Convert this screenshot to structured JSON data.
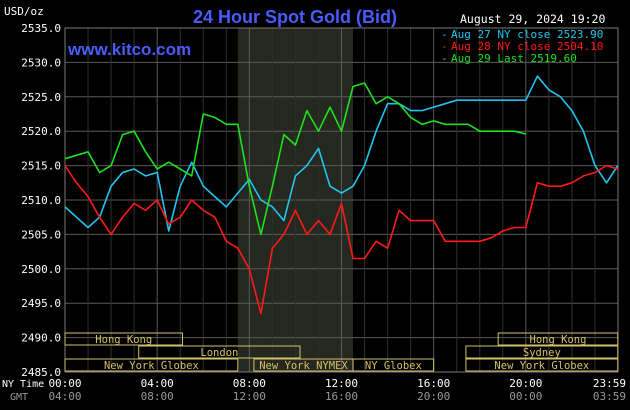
{
  "chart_data": {
    "type": "line",
    "title": "24 Hour Spot Gold (Bid)",
    "ylabel": "USD/oz",
    "date_label": "August 29, 2024 19:20",
    "watermark": "www.kitco.com",
    "ylim": [
      2485,
      2535
    ],
    "y_ticks": [
      "2535.0",
      "2530.0",
      "2525.0",
      "2520.0",
      "2515.0",
      "2510.0",
      "2505.0",
      "2500.0",
      "2495.0",
      "2490.0",
      "2485.0"
    ],
    "x_range_hours": [
      0,
      24
    ],
    "ny_time_label": "NY Time",
    "gmt_label": "GMT",
    "x_ticks_ny": [
      "00:00",
      "04:00",
      "08:00",
      "12:00",
      "16:00",
      "20:00",
      "23:59"
    ],
    "x_ticks_gmt": [
      "04:00",
      "08:00",
      "12:00",
      "16:00",
      "20:00",
      "00:00",
      "03:59"
    ],
    "shaded_region_hours": [
      7.5,
      12.5
    ],
    "legend": [
      {
        "label": "Aug 27 NY close 2523.90",
        "color": "#22c4f0"
      },
      {
        "label": "Aug 28 NY close 2504.10",
        "color": "#ff1a1a"
      },
      {
        "label": "Aug 29 Last 2519.60",
        "color": "#1ee01e"
      }
    ],
    "sessions": [
      {
        "label": "Hong Kong",
        "row": 0,
        "start": 0.0,
        "end": 5.1
      },
      {
        "label": "Hong Kong",
        "row": 0,
        "start": 18.8,
        "end": 23.99
      },
      {
        "label": "London",
        "row": 1,
        "start": 3.2,
        "end": 10.2
      },
      {
        "label": "Sydney",
        "row": 1,
        "start": 17.4,
        "end": 23.99
      },
      {
        "label": "New York Globex",
        "row": 2,
        "start": 0.0,
        "end": 7.5
      },
      {
        "label": "New York NYMEX",
        "row": 2,
        "start": 8.2,
        "end": 12.5
      },
      {
        "label": "NY Globex",
        "row": 2,
        "start": 12.5,
        "end": 16.0
      },
      {
        "label": "New York Globex",
        "row": 2,
        "start": 17.4,
        "end": 23.99
      }
    ],
    "series": [
      {
        "name": "Aug 27 NY close 2523.90",
        "color": "#22c4f0",
        "x": [
          0,
          0.5,
          1,
          1.5,
          2,
          2.5,
          3,
          3.5,
          4,
          4.5,
          5,
          5.5,
          6,
          6.5,
          7,
          7.5,
          8,
          8.5,
          9,
          9.5,
          10,
          10.5,
          11,
          11.5,
          12,
          12.5,
          13,
          13.5,
          14,
          14.5,
          15,
          15.5,
          16,
          16.5,
          17,
          17.5,
          18,
          18.5,
          19,
          19.5,
          20,
          20.5,
          21,
          21.5,
          22,
          22.5,
          23,
          23.5,
          23.99
        ],
        "y": [
          2509,
          2507.5,
          2506,
          2507.5,
          2512,
          2514,
          2514.5,
          2513.5,
          2514,
          2505.5,
          2512,
          2515.5,
          2512,
          2510.5,
          2509,
          2511,
          2513,
          2510,
          2509,
          2507,
          2513.5,
          2515,
          2517.5,
          2512,
          2511,
          2512,
          2515,
          2520,
          2524,
          2524,
          2523,
          2523,
          2523.5,
          2524,
          2524.5,
          2524.5,
          2524.5,
          2524.5,
          2524.5,
          2524.5,
          2524.5,
          2528,
          2526,
          2525,
          2523,
          2520,
          2515,
          2512.5,
          2515
        ]
      },
      {
        "name": "Aug 28 NY close 2504.10",
        "color": "#ff1a1a",
        "x": [
          0,
          0.5,
          1,
          1.5,
          2,
          2.5,
          3,
          3.5,
          4,
          4.5,
          5,
          5.5,
          6,
          6.5,
          7,
          7.5,
          8,
          8.5,
          9,
          9.5,
          10,
          10.5,
          11,
          11.5,
          12,
          12.5,
          13,
          13.5,
          14,
          14.5,
          15,
          15.5,
          16,
          16.5,
          17,
          17.5,
          18,
          18.5,
          19,
          19.5,
          20,
          20.5,
          21,
          21.5,
          22,
          22.5,
          23,
          23.5,
          23.99
        ],
        "y": [
          2515,
          2512.5,
          2510.5,
          2507.5,
          2505,
          2507.5,
          2509.5,
          2508.5,
          2510,
          2506.5,
          2507.5,
          2510,
          2508.5,
          2507.5,
          2504,
          2503,
          2500,
          2493.5,
          2503,
          2505,
          2508.5,
          2505,
          2507,
          2505,
          2509.5,
          2501.5,
          2501.5,
          2504,
          2503,
          2508.5,
          2507,
          2507,
          2507,
          2504,
          2504,
          2504,
          2504,
          2504.5,
          2505.5,
          2506,
          2506,
          2512.5,
          2512,
          2512,
          2512.5,
          2513.5,
          2514,
          2515,
          2514.5
        ]
      },
      {
        "name": "Aug 29 Last 2519.60",
        "color": "#1ee01e",
        "x": [
          0,
          0.5,
          1,
          1.5,
          2,
          2.5,
          3,
          3.5,
          4,
          4.5,
          5,
          5.5,
          6,
          6.5,
          7,
          7.5,
          8,
          8.5,
          9,
          9.5,
          10,
          10.5,
          11,
          11.5,
          12,
          12.5,
          13,
          13.5,
          14,
          14.5,
          15,
          15.5,
          16,
          16.5,
          17,
          17.5,
          18,
          18.5,
          19,
          19.5,
          20
        ],
        "y": [
          2516,
          2516.5,
          2517,
          2514,
          2515,
          2519.5,
          2520,
          2517,
          2514.5,
          2515.5,
          2514.5,
          2513.5,
          2522.5,
          2522,
          2521,
          2521,
          2512,
          2505,
          2512,
          2519.5,
          2518,
          2523,
          2520,
          2523.5,
          2520,
          2526.5,
          2527,
          2524,
          2525,
          2524,
          2522,
          2521,
          2521.5,
          2521,
          2521,
          2521,
          2520,
          2520,
          2520,
          2520,
          2519.6
        ]
      }
    ]
  }
}
